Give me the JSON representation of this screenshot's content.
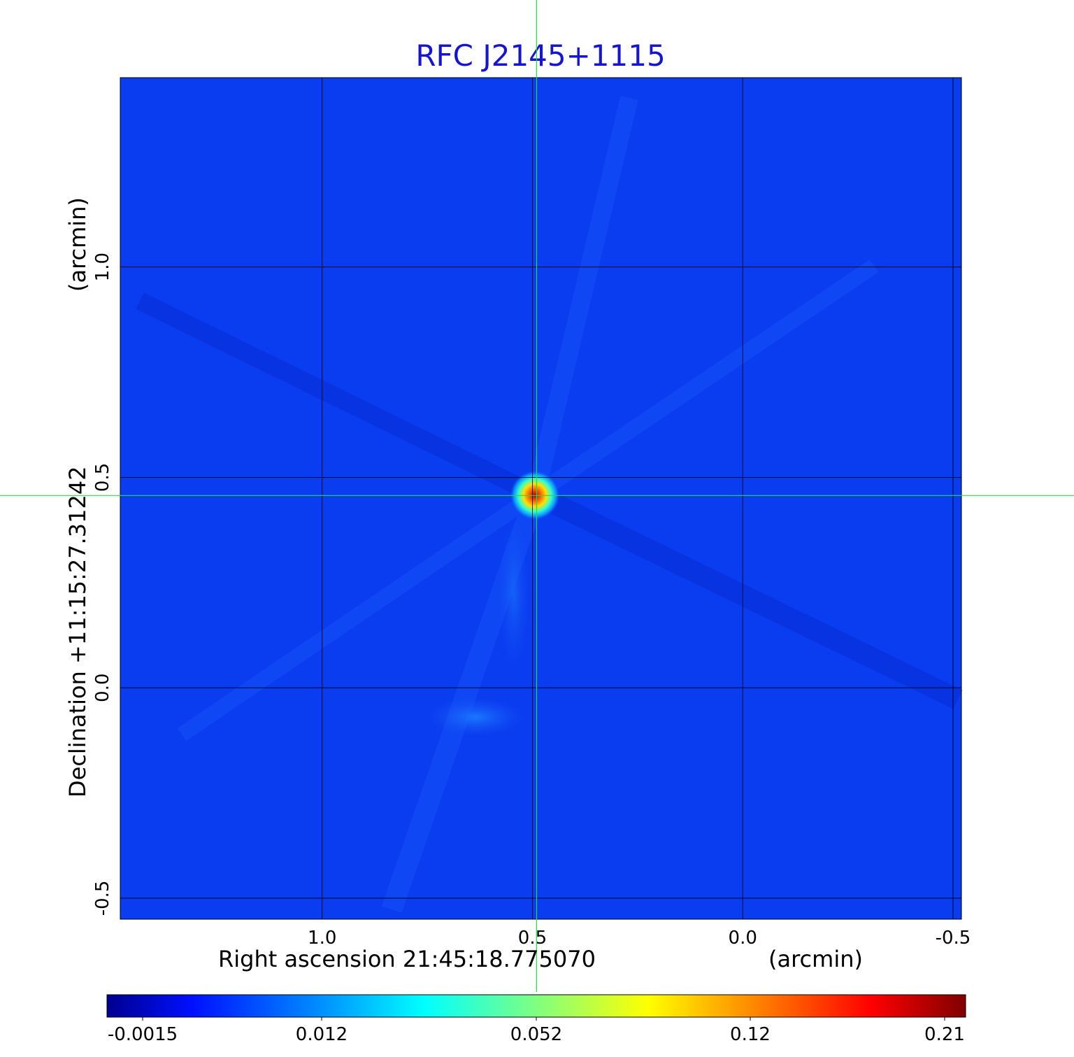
{
  "chart_data": {
    "type": "heatmap",
    "title": "RFC J2145+1115",
    "xlabel": "Right ascension  21:45:18.775070",
    "xunit": "(arcmin)",
    "ylabel": "Declination  +11:15:27.31242",
    "yunit": "(arcmin)",
    "x_ticks": [
      1.0,
      0.5,
      0.0,
      -0.5
    ],
    "x_tick_labels": [
      "1.0",
      "0.5",
      "0.0",
      "-0.5"
    ],
    "y_ticks": [
      1.0,
      0.5,
      0.0,
      -0.5
    ],
    "y_tick_labels": [
      "1.0",
      "0.5",
      "0.0",
      "-0.5"
    ],
    "xlim": [
      1.48,
      -0.52
    ],
    "ylim": [
      -0.55,
      1.45
    ],
    "grid": true,
    "crosshair": {
      "x": 0.49,
      "y": 0.457
    },
    "colormap": "jet",
    "colorbar_ticks": [
      "-0.0015",
      "0.012",
      "0.052",
      "0.12",
      "0.21"
    ],
    "sources": [
      {
        "x": 0.49,
        "y": 0.457,
        "flux": 0.21
      },
      {
        "x": 0.7,
        "y": -0.07,
        "flux": 0.008
      }
    ]
  }
}
